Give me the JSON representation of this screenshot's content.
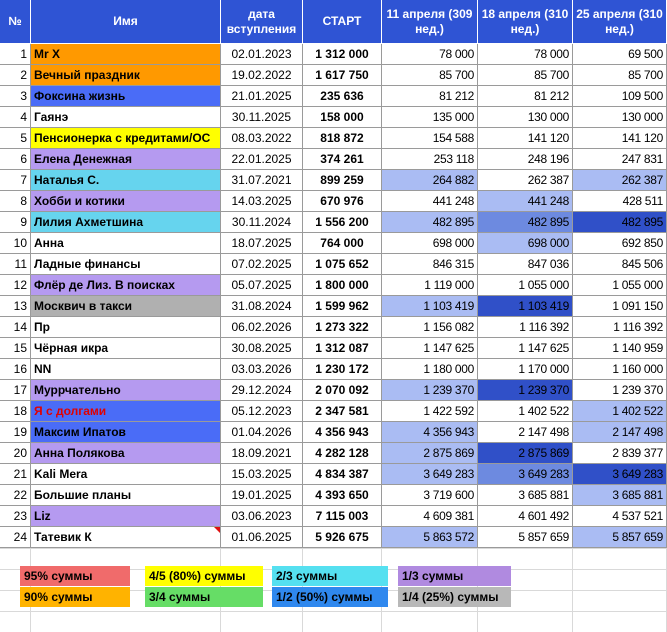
{
  "header": {
    "num": "№",
    "name": "Имя",
    "date": "дата вступления",
    "start": "СТАРТ",
    "w1": "11 апреля (309 нед.)",
    "w2": "18 апреля (310 нед.)",
    "w3": "25 апреля (310 нед.)"
  },
  "colors": {
    "header_bg": "#2f54d4",
    "orange": "#ff9900",
    "blue": "#4a6cf7",
    "yellow": "#ffff00",
    "purple": "#b59af0",
    "cyan": "#66d4ee",
    "gray": "#b0b0b0",
    "val_light": "#aabcf3",
    "val_mid": "#6d8ae0",
    "val_dark": "#3050c8",
    "red_text": "#e00000"
  },
  "rows": [
    {
      "num": "1",
      "name": "Mr X",
      "date": "02.01.2023",
      "start": "1 312 000",
      "w1": "78 000",
      "w2": "78 000",
      "w3": "69 500",
      "name_bg": "orange",
      "h": [
        "",
        "",
        ""
      ]
    },
    {
      "num": "2",
      "name": "Вечный праздник",
      "date": "19.02.2022",
      "start": "1 617 750",
      "w1": "85 700",
      "w2": "85 700",
      "w3": "85 700",
      "name_bg": "orange",
      "h": [
        "",
        "",
        ""
      ]
    },
    {
      "num": "3",
      "name": "Фоксина жизнь",
      "date": "21.01.2025",
      "start": "235 636",
      "w1": "81 212",
      "w2": "81 212",
      "w3": "109 500",
      "name_bg": "blue",
      "h": [
        "",
        "",
        ""
      ]
    },
    {
      "num": "4",
      "name": "Гаянэ",
      "date": "30.11.2025",
      "start": "158 000",
      "w1": "135 000",
      "w2": "130 000",
      "w3": "130 000",
      "name_bg": "",
      "h": [
        "",
        "",
        ""
      ]
    },
    {
      "num": "5",
      "name": "Пенсионерка с кредитами/ОС",
      "date": "08.03.2022",
      "start": "818 872",
      "w1": "154 588",
      "w2": "141 120",
      "w3": "141 120",
      "name_bg": "yellow",
      "h": [
        "",
        "",
        ""
      ]
    },
    {
      "num": "6",
      "name": "Елена Денежная",
      "date": "22.01.2025",
      "start": "374 261",
      "w1": "253 118",
      "w2": "248 196",
      "w3": "247 831",
      "name_bg": "purple",
      "h": [
        "",
        "",
        ""
      ]
    },
    {
      "num": "7",
      "name": "Наталья С.",
      "date": "31.07.2021",
      "start": "899 259",
      "w1": "264 882",
      "w2": "262 387",
      "w3": "262 387",
      "name_bg": "cyan",
      "h": [
        "val_light",
        "",
        "val_light"
      ]
    },
    {
      "num": "8",
      "name": "Хобби и котики",
      "date": "14.03.2025",
      "start": "670 976",
      "w1": "441 248",
      "w2": "441 248",
      "w3": "428 511",
      "name_bg": "purple",
      "h": [
        "",
        "val_light",
        ""
      ]
    },
    {
      "num": "9",
      "name": "Лилия Ахметшина",
      "date": "30.11.2024",
      "start": "1 556 200",
      "w1": "482 895",
      "w2": "482 895",
      "w3": "482 895",
      "name_bg": "cyan",
      "h": [
        "val_light",
        "val_mid",
        "val_dark"
      ]
    },
    {
      "num": "10",
      "name": "Анна",
      "date": "18.07.2025",
      "start": "764 000",
      "w1": "698 000",
      "w2": "698 000",
      "w3": "692 850",
      "name_bg": "",
      "h": [
        "",
        "val_light",
        ""
      ]
    },
    {
      "num": "11",
      "name": "Ладные финансы",
      "date": "07.02.2025",
      "start": "1 075 652",
      "w1": "846 315",
      "w2": "847 036",
      "w3": "845 506",
      "name_bg": "",
      "h": [
        "",
        "",
        ""
      ]
    },
    {
      "num": "12",
      "name": "Флёр де Лиз. В поисках",
      "date": "05.07.2025",
      "start": "1 800 000",
      "w1": "1 119 000",
      "w2": "1 055 000",
      "w3": "1 055 000",
      "name_bg": "purple",
      "h": [
        "",
        "",
        ""
      ]
    },
    {
      "num": "13",
      "name": "Москвич в такси",
      "date": "31.08.2024",
      "start": "1 599 962",
      "w1": "1 103 419",
      "w2": "1 103 419",
      "w3": "1 091 150",
      "name_bg": "gray",
      "h": [
        "val_light",
        "val_dark",
        ""
      ]
    },
    {
      "num": "14",
      "name": "Пр",
      "date": "06.02.2026",
      "start": "1 273 322",
      "w1": "1 156 082",
      "w2": "1 116 392",
      "w3": "1 116 392",
      "name_bg": "",
      "h": [
        "",
        "",
        ""
      ]
    },
    {
      "num": "15",
      "name": "Чёрная икра",
      "date": "30.08.2025",
      "start": "1 312 087",
      "w1": "1 147 625",
      "w2": "1 147 625",
      "w3": "1 140 959",
      "name_bg": "",
      "h": [
        "",
        "",
        ""
      ]
    },
    {
      "num": "16",
      "name": "NN",
      "date": "03.03.2026",
      "start": "1 230 172",
      "w1": "1 180 000",
      "w2": "1 170 000",
      "w3": "1 160 000",
      "name_bg": "",
      "h": [
        "",
        "",
        ""
      ]
    },
    {
      "num": "17",
      "name": "Муррчательно",
      "date": "29.12.2024",
      "start": "2 070 092",
      "w1": "1 239 370",
      "w2": "1 239 370",
      "w3": "1 239 370",
      "name_bg": "purple",
      "h": [
        "val_light",
        "val_dark",
        ""
      ]
    },
    {
      "num": "18",
      "name": "Я с долгами",
      "date": "05.12.2023",
      "start": "2 347 581",
      "w1": "1 422 592",
      "w2": "1 402 522",
      "w3": "1 402 522",
      "name_bg": "blue",
      "name_red": true,
      "h": [
        "",
        "",
        "val_light"
      ]
    },
    {
      "num": "19",
      "name": "Максим Ипатов",
      "date": "01.04.2026",
      "start": "4 356 943",
      "w1": "4 356 943",
      "w2": "2 147 498",
      "w3": "2 147 498",
      "name_bg": "blue",
      "h": [
        "val_light",
        "",
        "val_light"
      ]
    },
    {
      "num": "20",
      "name": "Анна Полякова",
      "date": "18.09.2021",
      "start": "4 282 128",
      "w1": "2 875 869",
      "w2": "2 875 869",
      "w3": "2 839 377",
      "name_bg": "purple",
      "h": [
        "val_light",
        "val_dark",
        ""
      ]
    },
    {
      "num": "21",
      "name": "Kali Mera",
      "date": "15.03.2025",
      "start": "4 834 387",
      "w1": "3 649 283",
      "w2": "3 649 283",
      "w3": "3 649 283",
      "name_bg": "",
      "h": [
        "val_light",
        "val_mid",
        "val_dark"
      ]
    },
    {
      "num": "22",
      "name": "Большие планы",
      "date": "19.01.2025",
      "start": "4 393 650",
      "w1": "3 719 600",
      "w2": "3 685 881",
      "w3": "3 685 881",
      "name_bg": "",
      "h": [
        "",
        "",
        "val_light"
      ]
    },
    {
      "num": "23",
      "name": "Liz",
      "date": "03.06.2023",
      "start": "7 115 003",
      "w1": "4 609 381",
      "w2": "4 601 492",
      "w3": "4 537 521",
      "name_bg": "purple",
      "h": [
        "",
        "",
        ""
      ]
    },
    {
      "num": "24",
      "name": "Татевик К",
      "date": "01.06.2025",
      "start": "5 926 675",
      "w1": "5 863 572",
      "w2": "5 857 659",
      "w3": "5 857 659",
      "name_bg": "",
      "note": true,
      "h": [
        "val_light",
        "",
        "val_light"
      ]
    }
  ],
  "legend": [
    {
      "label": "95% суммы",
      "color": "#f06b6b"
    },
    {
      "label": "4/5 (80%) суммы",
      "color": "#ffff00"
    },
    {
      "label": "2/3 суммы",
      "color": "#55e0f0"
    },
    {
      "label": "1/3 суммы",
      "color": "#b08ae0"
    },
    {
      "label": "90% суммы",
      "color": "#ffb300"
    },
    {
      "label": "3/4 суммы",
      "color": "#66dd66"
    },
    {
      "label": "1/2 (50%) суммы",
      "color": "#2f88ee"
    },
    {
      "label": "1/4 (25%) суммы",
      "color": "#b8b8b8"
    }
  ]
}
